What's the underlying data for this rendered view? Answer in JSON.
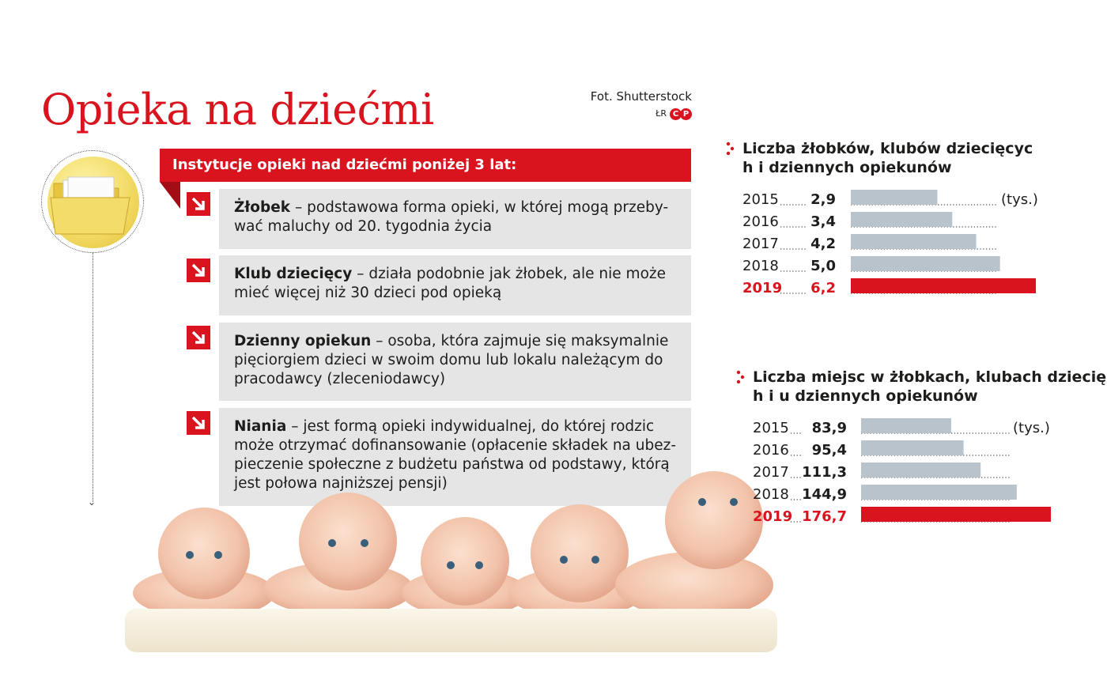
{
  "title": "Opieka na dziećmi",
  "credit": {
    "photo": "Fot. Shutterstock",
    "mark": "ŁR"
  },
  "colors": {
    "accent": "#d9141f",
    "bar": "#b8c3cb",
    "card": "#e5e5e5"
  },
  "icons": [
    "folder-icon",
    "arrow-down-right-icon"
  ],
  "banner": "Instytucje opieki nad dziećmi poniżej 3 lat:",
  "institutions": [
    {
      "name": "Żłobek",
      "desc": " – podstawowa forma opieki, w której mogą przeby- wać maluchy od 20. tygodnia życia"
    },
    {
      "name": "Klub dziecięcy",
      "desc": " – działa podobnie jak żłobek, ale nie może mieć więcej niż 30 dzieci pod opieką"
    },
    {
      "name": "Dzienny opiekun",
      "desc": " – osoba, która zajmuje się maksymalnie pięciorgiem dzieci w swoim domu lub lokalu należącym do pracodawcy (zleceniodawcy)"
    },
    {
      "name": "Niania",
      "desc": " – jest formą opieki indywidualnej, do której rodzic może otrzymać dofinansowanie (opłacenie składek na ubez- pieczenie społeczne z budżetu państwa od podstawy, którą jest połowa najniższej pensji)"
    }
  ],
  "chart_data": [
    {
      "type": "bar",
      "orientation": "horizontal",
      "title": "Liczba żłobków, klubów dziecięcych i dziennych opiekunów",
      "unit": "(tys.)",
      "categories": [
        "2015",
        "2016",
        "2017",
        "2018",
        "2019"
      ],
      "values": [
        2.9,
        3.4,
        4.2,
        5.0,
        6.2
      ],
      "value_labels": [
        "2,9",
        "3,4",
        "4,2",
        "5,0",
        "6,2"
      ],
      "highlight": "2019"
    },
    {
      "type": "bar",
      "orientation": "horizontal",
      "title": "Liczba miejsc w żłobkach, klubach dziecięcych i u dziennych opiekunów",
      "unit": "(tys.)",
      "categories": [
        "2015",
        "2016",
        "2017",
        "2018",
        "2019"
      ],
      "values": [
        83.9,
        95.4,
        111.3,
        144.9,
        176.7
      ],
      "value_labels": [
        "83,9",
        "95,4",
        "111,3",
        "144,9",
        "176,7"
      ],
      "highlight": "2019"
    }
  ]
}
